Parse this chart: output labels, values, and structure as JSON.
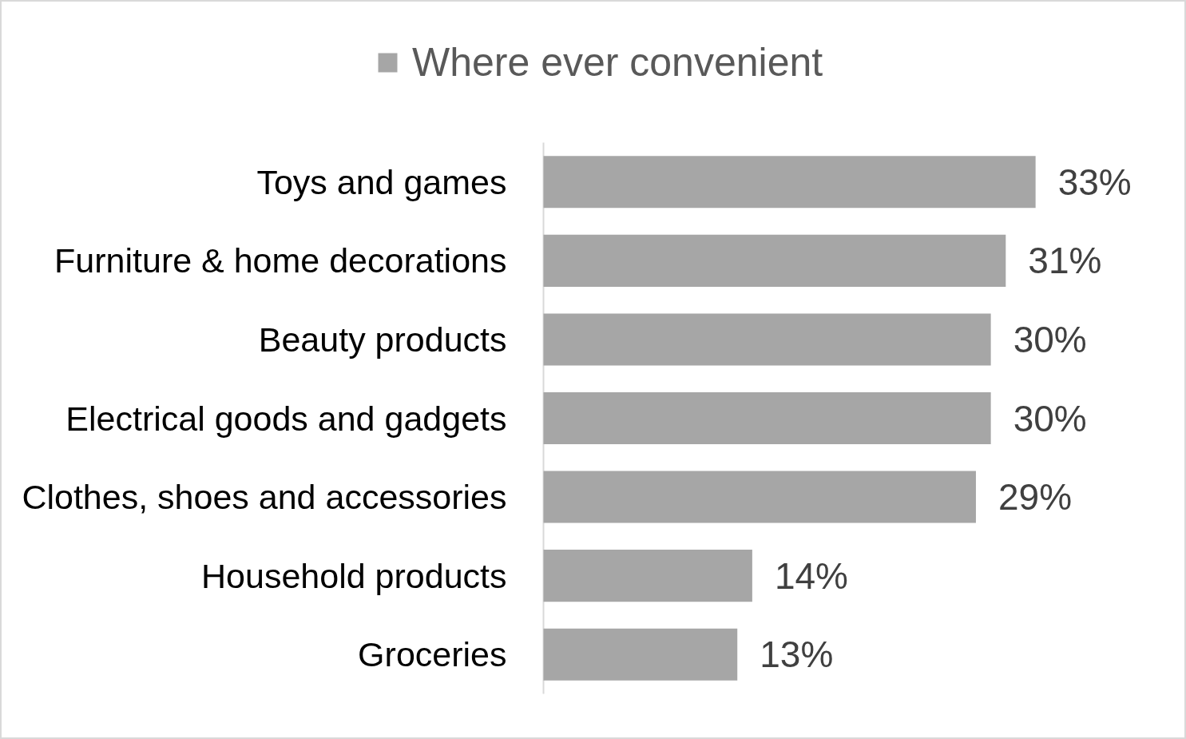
{
  "chart_data": {
    "type": "bar",
    "orientation": "horizontal",
    "categories": [
      "Toys and games",
      "Furniture & home decorations",
      "Beauty products",
      "Electrical goods and gadgets",
      "Clothes, shoes and accessories",
      "Household products",
      "Groceries"
    ],
    "series": [
      {
        "name": "Where ever convenient",
        "color": "#a6a6a6",
        "values": [
          33,
          31,
          30,
          30,
          29,
          14,
          13
        ],
        "value_labels": [
          "33%",
          "31%",
          "30%",
          "30%",
          "29%",
          "14%",
          "13%"
        ]
      }
    ],
    "legend": "top",
    "grid": false
  }
}
